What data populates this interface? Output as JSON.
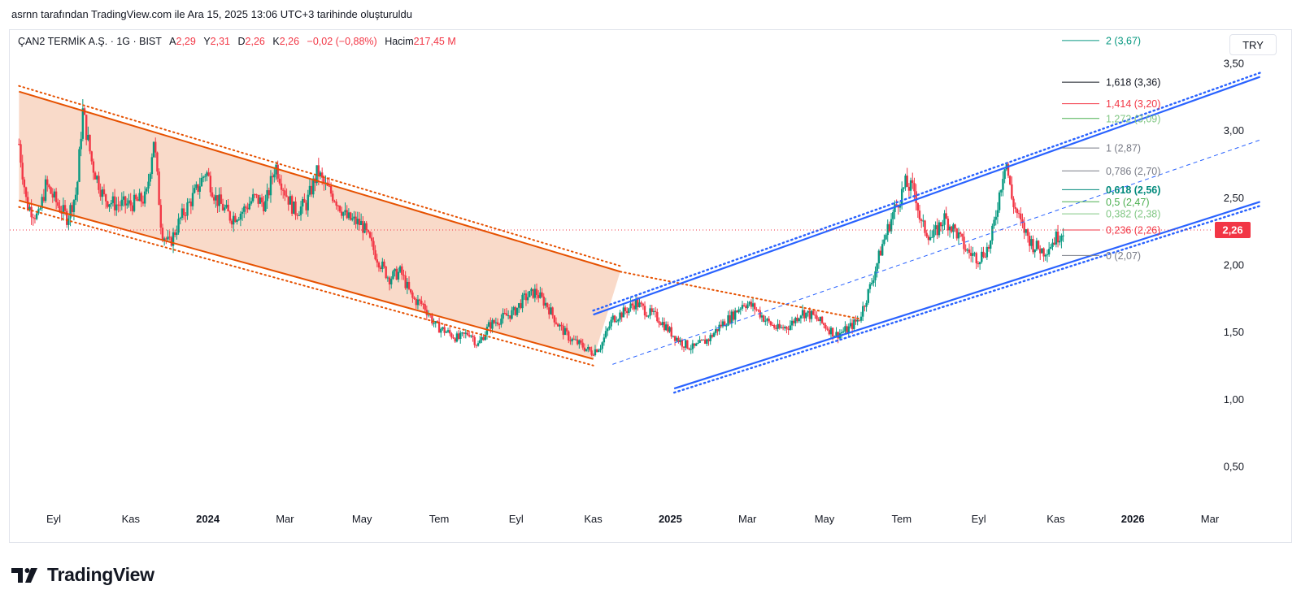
{
  "header": {
    "attribution": "asrnn tarafından TradingView.com ile Ara 15, 2025 13:06 UTC+3 tarihinde oluşturuldu"
  },
  "legend": {
    "symbol": "ÇAN2 TERMİK A.Ş. · 1G · BIST",
    "open_label": "A",
    "open": "2,29",
    "high_label": "Y",
    "high": "2,31",
    "low_label": "D",
    "low": "2,26",
    "close_label": "K",
    "close": "2,26",
    "change": "−0,02 (−0,88%)",
    "volume_label": "Hacim",
    "volume": "217,45 M"
  },
  "currency": "TRY",
  "brand": "TradingView",
  "colors": {
    "up": "#089981",
    "down": "#f23645",
    "channel_down": "#e65100",
    "channel_up": "#2962ff",
    "fill": "#f8d3c0",
    "price_tag": "#f23645"
  },
  "chart_data": {
    "type": "candlestick",
    "ylim": [
      0.3,
      3.6
    ],
    "y_ticks": [
      "3,50",
      "3,00",
      "2,50",
      "2,00",
      "1,50",
      "1,00",
      "0,50"
    ],
    "y_tick_values": [
      3.5,
      3.0,
      2.5,
      2.0,
      1.5,
      1.0,
      0.5
    ],
    "x_ticks": [
      {
        "label": "Eyl",
        "bold": false,
        "m": 0
      },
      {
        "label": "Kas",
        "bold": false,
        "m": 2
      },
      {
        "label": "2024",
        "bold": true,
        "m": 4
      },
      {
        "label": "Mar",
        "bold": false,
        "m": 6
      },
      {
        "label": "May",
        "bold": false,
        "m": 8
      },
      {
        "label": "Tem",
        "bold": false,
        "m": 10
      },
      {
        "label": "Eyl",
        "bold": false,
        "m": 12
      },
      {
        "label": "Kas",
        "bold": false,
        "m": 14
      },
      {
        "label": "2025",
        "bold": true,
        "m": 16
      },
      {
        "label": "Mar",
        "bold": false,
        "m": 18
      },
      {
        "label": "May",
        "bold": false,
        "m": 20
      },
      {
        "label": "Tem",
        "bold": false,
        "m": 22
      },
      {
        "label": "Eyl",
        "bold": false,
        "m": 24
      },
      {
        "label": "Kas",
        "bold": false,
        "m": 26
      },
      {
        "label": "2026",
        "bold": true,
        "m": 28
      },
      {
        "label": "Mar",
        "bold": false,
        "m": 30
      }
    ],
    "last_price": "2,26",
    "last_value": 2.26,
    "price_path": [
      [
        -0.9,
        2.9
      ],
      [
        -0.7,
        2.45
      ],
      [
        -0.4,
        2.35
      ],
      [
        -0.2,
        2.6
      ],
      [
        0.1,
        2.45
      ],
      [
        0.35,
        2.35
      ],
      [
        0.6,
        2.55
      ],
      [
        0.75,
        3.15
      ],
      [
        1.0,
        2.75
      ],
      [
        1.3,
        2.5
      ],
      [
        1.6,
        2.45
      ],
      [
        2.0,
        2.45
      ],
      [
        2.4,
        2.5
      ],
      [
        2.6,
        2.95
      ],
      [
        2.8,
        2.25
      ],
      [
        3.0,
        2.15
      ],
      [
        3.3,
        2.35
      ],
      [
        3.7,
        2.55
      ],
      [
        3.95,
        2.7
      ],
      [
        4.2,
        2.5
      ],
      [
        4.6,
        2.35
      ],
      [
        4.9,
        2.4
      ],
      [
        5.2,
        2.5
      ],
      [
        5.5,
        2.45
      ],
      [
        5.75,
        2.75
      ],
      [
        6.0,
        2.55
      ],
      [
        6.25,
        2.4
      ],
      [
        6.55,
        2.45
      ],
      [
        6.85,
        2.7
      ],
      [
        7.0,
        2.6
      ],
      [
        7.3,
        2.5
      ],
      [
        7.6,
        2.35
      ],
      [
        8.0,
        2.3
      ],
      [
        8.4,
        2.05
      ],
      [
        8.7,
        1.9
      ],
      [
        9.0,
        1.95
      ],
      [
        9.3,
        1.75
      ],
      [
        9.6,
        1.7
      ],
      [
        9.9,
        1.55
      ],
      [
        10.2,
        1.5
      ],
      [
        10.5,
        1.45
      ],
      [
        10.8,
        1.5
      ],
      [
        11.0,
        1.4
      ],
      [
        11.3,
        1.55
      ],
      [
        11.6,
        1.6
      ],
      [
        11.95,
        1.65
      ],
      [
        12.2,
        1.75
      ],
      [
        12.5,
        1.8
      ],
      [
        12.8,
        1.7
      ],
      [
        13.1,
        1.55
      ],
      [
        13.4,
        1.45
      ],
      [
        13.7,
        1.4
      ],
      [
        13.95,
        1.35
      ],
      [
        14.2,
        1.4
      ],
      [
        14.5,
        1.6
      ],
      [
        14.8,
        1.65
      ],
      [
        15.1,
        1.72
      ],
      [
        15.4,
        1.65
      ],
      [
        15.7,
        1.6
      ],
      [
        16.0,
        1.5
      ],
      [
        16.3,
        1.42
      ],
      [
        16.6,
        1.38
      ],
      [
        17.0,
        1.45
      ],
      [
        17.3,
        1.55
      ],
      [
        17.6,
        1.62
      ],
      [
        17.9,
        1.72
      ],
      [
        18.2,
        1.68
      ],
      [
        18.5,
        1.58
      ],
      [
        18.8,
        1.52
      ],
      [
        19.1,
        1.55
      ],
      [
        19.4,
        1.65
      ],
      [
        19.7,
        1.62
      ],
      [
        20.0,
        1.55
      ],
      [
        20.3,
        1.48
      ],
      [
        20.6,
        1.52
      ],
      [
        20.9,
        1.6
      ],
      [
        21.2,
        1.85
      ],
      [
        21.5,
        2.15
      ],
      [
        21.8,
        2.4
      ],
      [
        22.1,
        2.6
      ],
      [
        22.35,
        2.55
      ],
      [
        22.5,
        2.3
      ],
      [
        22.8,
        2.2
      ],
      [
        23.1,
        2.35
      ],
      [
        23.4,
        2.25
      ],
      [
        23.7,
        2.1
      ],
      [
        24.0,
        2.05
      ],
      [
        24.3,
        2.15
      ],
      [
        24.55,
        2.55
      ],
      [
        24.7,
        2.8
      ],
      [
        24.85,
        2.5
      ],
      [
        25.1,
        2.3
      ],
      [
        25.4,
        2.15
      ],
      [
        25.7,
        2.1
      ],
      [
        26.0,
        2.2
      ],
      [
        26.2,
        2.26
      ]
    ],
    "fib_levels": [
      {
        "label": "2 (3,67)",
        "value": 3.67,
        "color": "#089981",
        "lineColor": "#089981",
        "bold": false
      },
      {
        "label": "1,618 (3,36)",
        "value": 3.36,
        "color": "#131722",
        "lineColor": "#131722",
        "bold": false
      },
      {
        "label": "1,414 (3,20)",
        "value": 3.2,
        "color": "#f23645",
        "lineColor": "#f23645",
        "bold": false
      },
      {
        "label": "1,272 (3,09)",
        "value": 3.09,
        "color": "#81c784",
        "lineColor": "#4caf50",
        "bold": false
      },
      {
        "label": "1 (2,87)",
        "value": 2.87,
        "color": "#787b86",
        "lineColor": "#787b86",
        "bold": false
      },
      {
        "label": "0,786 (2,70)",
        "value": 2.7,
        "color": "#787b86",
        "lineColor": "#787b86",
        "bold": false
      },
      {
        "label": "0,618 (2,56)",
        "value": 2.56,
        "color": "#00897b",
        "lineColor": "#00897b",
        "bold": true
      },
      {
        "label": "0,5 (2,47)",
        "value": 2.47,
        "color": "#4caf50",
        "lineColor": "#4caf50",
        "bold": false
      },
      {
        "label": "0,382 (2,38)",
        "value": 2.38,
        "color": "#81c784",
        "lineColor": "#81c784",
        "bold": false
      },
      {
        "label": "0,236 (2,26)",
        "value": 2.26,
        "color": "#f23645",
        "lineColor": "#f23645",
        "bold": false
      },
      {
        "label": "0 (2,07)",
        "value": 2.07,
        "color": "#787b86",
        "lineColor": "#787b86",
        "bold": false
      }
    ],
    "descending_channel": {
      "upper": [
        [
          -0.9,
          3.29
        ],
        [
          14.7,
          1.95
        ]
      ],
      "lower": [
        [
          -0.9,
          2.48
        ],
        [
          14.0,
          1.3
        ]
      ],
      "upper_outer_extension": [
        [
          14.7,
          1.95
        ],
        [
          20.9,
          1.6
        ]
      ]
    },
    "ascending_channel": {
      "upper": [
        [
          14.0,
          1.63
        ],
        [
          31.3,
          3.4
        ]
      ],
      "lower": [
        [
          16.1,
          1.08
        ],
        [
          31.3,
          2.47
        ]
      ],
      "mid": [
        [
          14.5,
          1.26
        ],
        [
          31.3,
          2.93
        ]
      ]
    }
  }
}
